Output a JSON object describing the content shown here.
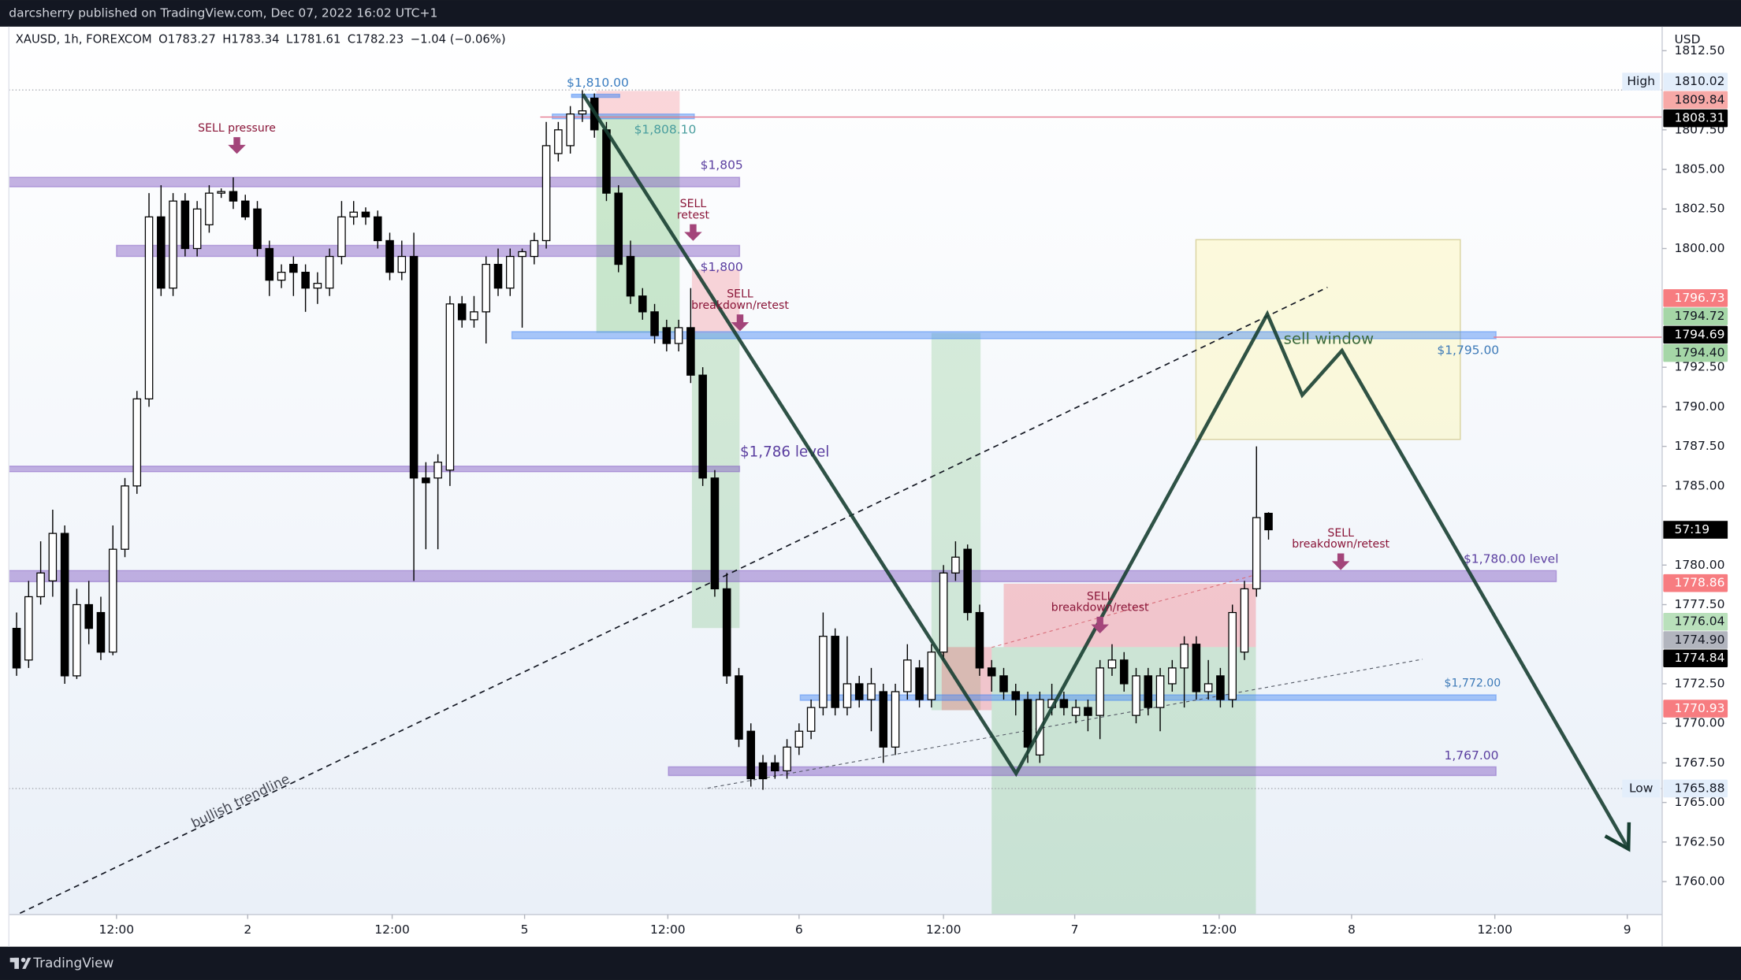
{
  "header": {
    "byline": "darcsherry published on TradingView.com, Dec 07, 2022 16:02 UTC+1",
    "symbol": "XAUSD, 1h, FOREXCOM",
    "ohlc": [
      "O1783.27",
      "H1783.34",
      "L1781.61",
      "C1782.23",
      "−1.04 (−0.06%)"
    ]
  },
  "footer": {
    "brand": "TradingView"
  },
  "chart_data": {
    "type": "candlestick",
    "currency": "USD",
    "countdown": "57:19",
    "up_color": "#ffffff",
    "down_color": "#000000",
    "wick_color": "#000000",
    "xlim": [
      3.36,
      140.7
    ],
    "ylim": [
      1757.92,
      1814.02
    ],
    "xticks": [
      {
        "value": 12.3,
        "label": "12:00"
      },
      {
        "value": 23.2,
        "label": "2"
      },
      {
        "value": 35.2,
        "label": "12:00"
      },
      {
        "value": 46.2,
        "label": "5"
      },
      {
        "value": 58.1,
        "label": "12:00"
      },
      {
        "value": 69.0,
        "label": "6"
      },
      {
        "value": 81.0,
        "label": "12:00"
      },
      {
        "value": 91.9,
        "label": "7"
      },
      {
        "value": 103.9,
        "label": "12:00"
      },
      {
        "value": 114.9,
        "label": "8"
      },
      {
        "value": 126.8,
        "label": "12:00"
      },
      {
        "value": 137.8,
        "label": "9"
      }
    ],
    "yticks": [
      {
        "value": 1812.5,
        "label": "1812.50"
      },
      {
        "value": 1807.5,
        "label": "1807.50"
      },
      {
        "value": 1805,
        "label": "1805.00"
      },
      {
        "value": 1802.5,
        "label": "1802.50"
      },
      {
        "value": 1800,
        "label": "1800.00"
      },
      {
        "value": 1792.5,
        "label": "1792.50"
      },
      {
        "value": 1790,
        "label": "1790.00"
      },
      {
        "value": 1787.5,
        "label": "1787.50"
      },
      {
        "value": 1785,
        "label": "1785.00"
      },
      {
        "value": 1780,
        "label": "1780.00"
      },
      {
        "value": 1777.5,
        "label": "1777.50"
      },
      {
        "value": 1772.5,
        "label": "1772.50"
      },
      {
        "value": 1770,
        "label": "1770.00"
      },
      {
        "value": 1767.5,
        "label": "1767.50"
      },
      {
        "value": 1765,
        "label": "1765.00"
      },
      {
        "value": 1762.5,
        "label": "1762.50"
      },
      {
        "value": 1760,
        "label": "1760.00"
      }
    ],
    "x": [
      4,
      5,
      6,
      7,
      8,
      9,
      10,
      11,
      12,
      13,
      14,
      15,
      16,
      17,
      18,
      19,
      20,
      21,
      22,
      23,
      24,
      25,
      26,
      27,
      28,
      29,
      30,
      31,
      32,
      33,
      34,
      35,
      36,
      37,
      38,
      39,
      40,
      41,
      42,
      43,
      44,
      45,
      46,
      47,
      48,
      49,
      50,
      51,
      52,
      53,
      54,
      55,
      56,
      57,
      58,
      59,
      60,
      61,
      62,
      63,
      64,
      65,
      66,
      67,
      68,
      69,
      70,
      71,
      72,
      73,
      74,
      75,
      76,
      77,
      78,
      79,
      80,
      81,
      82,
      83,
      84,
      85,
      86,
      87,
      88,
      89,
      90,
      91,
      92,
      93,
      94,
      95,
      96,
      97,
      98,
      99,
      100,
      101,
      102,
      103,
      104,
      105,
      106,
      107,
      108
    ],
    "open": [
      1776,
      1774,
      1778,
      1779,
      1782,
      1773,
      1777.5,
      1777,
      1774.5,
      1781,
      1785,
      1790.5,
      1802,
      1797.5,
      1803,
      1800,
      1801.5,
      1803.5,
      1803.6,
      1803,
      1802.5,
      1800,
      1798,
      1799,
      1798.5,
      1797.5,
      1797.5,
      1799.5,
      1802,
      1802.3,
      1802,
      1800.5,
      1798.5,
      1799.5,
      1785.5,
      1785.5,
      1786,
      1796.5,
      1795.5,
      1796,
      1799,
      1797.5,
      1799.5,
      1799.5,
      1800.5,
      1806,
      1806.5,
      1808.5,
      1809.5,
      1807.5,
      1803.5,
      1799.5,
      1797,
      1796,
      1795,
      1794,
      1795,
      1792,
      1785.5,
      1778.5,
      1773,
      1769.5,
      1767.5,
      1767.5,
      1767,
      1768.5,
      1769.5,
      1771,
      1775.5,
      1771,
      1772.5,
      1771.5,
      1772,
      1768.5,
      1772,
      1773.5,
      1771.5,
      1774.5,
      1779.5,
      1781,
      1777,
      1773.5,
      1773,
      1772,
      1771.5,
      1768,
      1771,
      1771.5,
      1770.5,
      1771,
      1770.5,
      1773.5,
      1774,
      1770.5,
      1773,
      1771,
      1772.5,
      1773.5,
      1775,
      1772,
      1773,
      1771.5,
      1774.5,
      1778.5,
      1783.27
    ],
    "high": [
      1777,
      1779,
      1781.5,
      1783.5,
      1782.5,
      1778.5,
      1779,
      1778,
      1782.5,
      1785.5,
      1791,
      1803.5,
      1804,
      1803.5,
      1803.5,
      1803,
      1804,
      1803.8,
      1804.5,
      1803.4,
      1803,
      1800.5,
      1799,
      1799.5,
      1799,
      1798.5,
      1800,
      1803,
      1803,
      1802.6,
      1802.4,
      1801,
      1800.5,
      1801,
      1786.5,
      1787,
      1797,
      1797,
      1797,
      1799.5,
      1800,
      1800,
      1800,
      1801,
      1808,
      1808,
      1809,
      1810,
      1809.8,
      1808,
      1804,
      1800.5,
      1797.5,
      1796.5,
      1795.5,
      1795.5,
      1797.5,
      1792.5,
      1786,
      1779.5,
      1773.5,
      1770,
      1768,
      1768,
      1769,
      1770,
      1771.5,
      1777,
      1776,
      1775.5,
      1773,
      1773.5,
      1772.5,
      1772.5,
      1775,
      1774,
      1775,
      1780,
      1781.5,
      1781.3,
      1777.5,
      1774,
      1773.5,
      1772.5,
      1772,
      1772,
      1772.5,
      1772,
      1771.5,
      1771.5,
      1774,
      1775,
      1774.5,
      1773.5,
      1773.5,
      1773.5,
      1774,
      1775.5,
      1775.5,
      1774,
      1773.5,
      1777.5,
      1779,
      1787.5,
      1783.34
    ],
    "low": [
      1773,
      1773.5,
      1777.5,
      1778,
      1772.5,
      1772.8,
      1775,
      1774,
      1774.3,
      1780.5,
      1784.5,
      1790,
      1797,
      1797,
      1799.5,
      1799.5,
      1801,
      1803.2,
      1802.5,
      1801.8,
      1799.5,
      1797,
      1797.5,
      1797,
      1796,
      1796.5,
      1797,
      1799,
      1801.5,
      1801.5,
      1800,
      1798,
      1798,
      1779,
      1781,
      1781,
      1785,
      1795,
      1795,
      1794,
      1797,
      1797,
      1795,
      1799,
      1800,
      1805.5,
      1806,
      1808,
      1807,
      1803,
      1798.5,
      1796.5,
      1795.5,
      1794,
      1793.5,
      1793.5,
      1791.5,
      1785,
      1778,
      1772.5,
      1768.5,
      1766,
      1765.8,
      1766.5,
      1766.5,
      1768,
      1769,
      1770.5,
      1770.5,
      1770.5,
      1771,
      1769.5,
      1767.5,
      1768,
      1771.5,
      1771,
      1771,
      1774,
      1779,
      1776.5,
      1773,
      1772,
      1771.5,
      1770.5,
      1767.5,
      1767.5,
      1770.5,
      1770.5,
      1770,
      1769.5,
      1769,
      1773,
      1772,
      1770,
      1770.5,
      1769.5,
      1772,
      1771,
      1771.5,
      1771.5,
      1771,
      1771,
      1774,
      1778,
      1781.61
    ],
    "close": [
      1773.5,
      1778,
      1779.5,
      1782,
      1773,
      1777.5,
      1776,
      1774.5,
      1781,
      1785,
      1790.5,
      1802,
      1797.5,
      1803,
      1800,
      1802.5,
      1803.5,
      1803.6,
      1803,
      1802,
      1800,
      1798,
      1798.5,
      1798.5,
      1797.5,
      1797.8,
      1799.5,
      1802,
      1802.3,
      1802,
      1800.5,
      1798.5,
      1799.5,
      1785.5,
      1785.2,
      1786.5,
      1796.5,
      1795.5,
      1796,
      1799,
      1797.5,
      1799.5,
      1799.8,
      1800.5,
      1806.5,
      1807.5,
      1808.5,
      1808.7,
      1807.5,
      1803.5,
      1799,
      1797,
      1796,
      1794.5,
      1794,
      1795,
      1792,
      1785.5,
      1778.5,
      1773,
      1769,
      1766.5,
      1766.5,
      1767,
      1768.5,
      1769.5,
      1771,
      1775.5,
      1771,
      1772.5,
      1771.5,
      1772.5,
      1768.5,
      1772,
      1774,
      1771.5,
      1774.5,
      1779.5,
      1780.5,
      1777,
      1773.5,
      1773,
      1772,
      1771.5,
      1768.5,
      1771.5,
      1771.5,
      1771,
      1771,
      1770.5,
      1773.5,
      1774,
      1772.5,
      1773,
      1771,
      1773,
      1773.5,
      1775,
      1772,
      1772.5,
      1771.5,
      1777,
      1778.5,
      1783,
      1782.23
    ],
    "boxes": [
      {
        "x1": 101.97,
        "x2": 123.93,
        "y1": 1800.56,
        "y2": 1787.94,
        "color": "rgba(255,245,157,0.35)",
        "border": "#d9d3a0"
      },
      {
        "x1": 52.16,
        "x2": 59.08,
        "y1": 1808.42,
        "y2": 1794.67,
        "color": "rgba(76,175,80,0.28)"
      },
      {
        "x1": 52.16,
        "x2": 59.08,
        "y1": 1809.96,
        "y2": 1808.42,
        "color": "rgba(242,54,69,0.2)"
      },
      {
        "x1": 60.1,
        "x2": 64.06,
        "y1": 1794.67,
        "y2": 1776.02,
        "color": "rgba(76,175,80,0.22)"
      },
      {
        "x1": 60.1,
        "x2": 64.06,
        "y1": 1798.67,
        "y2": 1794.67,
        "color": "rgba(242,54,69,0.2)"
      },
      {
        "x1": 80.0,
        "x2": 84.08,
        "y1": 1794.67,
        "y2": 1770.83,
        "color": "rgba(76,175,80,0.2)"
      },
      {
        "x1": 80.85,
        "x2": 85.0,
        "y1": 1774.82,
        "y2": 1770.83,
        "color": "rgba(242,54,69,0.25)"
      },
      {
        "x1": 86.0,
        "x2": 106.95,
        "y1": 1778.82,
        "y2": 1774.82,
        "color": "rgba(242,54,69,0.25)"
      },
      {
        "x1": 85.0,
        "x2": 106.95,
        "y1": 1774.82,
        "y2": 1757.92,
        "color": "rgba(76,175,80,0.22)"
      }
    ],
    "zones": [
      {
        "label": "$1,805",
        "x1": 3.36,
        "x2": 64.06,
        "y1": 1804.5,
        "y2": 1803.9,
        "color": "rgba(126,87,194,0.45)",
        "text_color": "#5b3fa0",
        "label_x": 60.8,
        "label_y": 1805.26,
        "font": 11
      },
      {
        "label": "$1,800",
        "x1": 12.3,
        "x2": 64.06,
        "y1": 1800.2,
        "y2": 1799.5,
        "color": "rgba(126,87,194,0.45)",
        "text_color": "#5b3fa0",
        "label_x": 60.8,
        "label_y": 1798.81,
        "font": 11
      },
      {
        "label": "$1,786 level",
        "x1": 3.36,
        "x2": 64.06,
        "y1": 1786.25,
        "y2": 1785.9,
        "color": "rgba(126,87,194,0.45)",
        "text_color": "#5b3fa0",
        "label_x": 64.1,
        "label_y": 1787.1,
        "font": 13
      },
      {
        "label": "$1,780.00 level",
        "x1": 3.36,
        "x2": 131.9,
        "y1": 1779.65,
        "y2": 1778.95,
        "color": "rgba(126,87,194,0.45)",
        "text_color": "#5b3fa0",
        "label_x": 124.2,
        "label_y": 1780.37,
        "font": 11
      },
      {
        "label": "1,767.00",
        "x1": 58.15,
        "x2": 126.9,
        "y1": 1767.25,
        "y2": 1766.7,
        "color": "rgba(126,87,194,0.45)",
        "text_color": "#5b3fa0",
        "label_x": 122.6,
        "label_y": 1767.95,
        "font": 11
      },
      {
        "label": "$1,795.00",
        "x1": 45.15,
        "x2": 126.9,
        "y1": 1794.75,
        "y2": 1794.3,
        "color": "rgba(66,133,244,0.45)",
        "text_color": "#3d7ab8",
        "label_x": 122.0,
        "label_y": 1793.55,
        "font": 11
      },
      {
        "label": "$1,772.00",
        "x1": 69.1,
        "x2": 126.9,
        "y1": 1771.8,
        "y2": 1771.45,
        "color": "rgba(66,133,244,0.45)",
        "text_color": "#3d7ab8",
        "label_x": 122.6,
        "label_y": 1772.51,
        "font": 10
      },
      {
        "label": "$1,808.10",
        "x1": 48.5,
        "x2": 60.3,
        "y1": 1808.5,
        "y2": 1808.2,
        "color": "rgba(66,133,244,0.45)",
        "text_color": "#4a9e9e",
        "label_x": 55.3,
        "label_y": 1807.5,
        "font": 11
      },
      {
        "label": "$1,810.00",
        "x1": 50.1,
        "x2": 54.1,
        "y1": 1809.75,
        "y2": 1809.55,
        "color": "rgba(66,133,244,0.5)",
        "text_color": "#3b7dc0",
        "label_x": 49.7,
        "label_y": 1810.45,
        "font": 11
      }
    ],
    "lines": [
      {
        "x": [
          4.28,
          112.9
        ],
        "y": [
          1758.0,
          1797.55
        ],
        "color": "#131722",
        "width": 1.2,
        "dash": "5,4",
        "label": "bullish trendline",
        "label_x": 18.6,
        "label_y": 1763.6
      },
      {
        "x": [
          61.4,
          120.8
        ],
        "y": [
          1765.9,
          1774.05
        ],
        "color": "#555a66",
        "width": 0.8,
        "dash": "3,3"
      },
      {
        "x": [
          85.0,
          107.0
        ],
        "y": [
          1774.8,
          1779.4
        ],
        "color": "#d9707b",
        "width": 0.8,
        "dash": "3,3"
      },
      {
        "x": [
          3.36,
          140.7
        ],
        "y": [
          1810.02,
          1810.02
        ],
        "color": "#9598a1",
        "width": 0.8,
        "dash": "1,2"
      },
      {
        "x": [
          3.36,
          140.7
        ],
        "y": [
          1765.88,
          1765.88
        ],
        "color": "#9598a1",
        "width": 0.8,
        "dash": "1,2"
      },
      {
        "x": [
          47.5,
          140.7
        ],
        "y": [
          1808.31,
          1808.31
        ],
        "color": "#e57a8f",
        "width": 1
      },
      {
        "x": [
          126.7,
          140.7
        ],
        "y": [
          1794.4,
          1794.4
        ],
        "color": "#e57a8f",
        "width": 1
      }
    ],
    "path": {
      "x": [
        51.05,
        87.03,
        107.9,
        110.8,
        114.1,
        137.9
      ],
      "y": [
        1809.75,
        1766.83,
        1795.86,
        1790.74,
        1793.55,
        1762.06
      ],
      "color": "#183f32",
      "width": 3.2,
      "arrow": true
    },
    "annotations": [
      {
        "lines": [
          "SELL pressure"
        ],
        "x": 22.3,
        "y": 1807.6
      },
      {
        "lines": [
          "SELL",
          "retest"
        ],
        "x": 60.2,
        "y": 1802.8
      },
      {
        "lines": [
          "SELL",
          "breakdown/retest"
        ],
        "x": 64.1,
        "y": 1797.1
      },
      {
        "lines": [
          "SELL",
          "breakdown/retest"
        ],
        "x": 94.0,
        "y": 1778.0
      },
      {
        "lines": [
          "SELL",
          "breakdown/retest"
        ],
        "x": 114.0,
        "y": 1782.0
      }
    ],
    "annotation_color": "#8a1538",
    "arrow_color": "#a3457a",
    "notes": [
      {
        "text": "sell window",
        "x": 113.0,
        "y": 1794.25,
        "color": "#3d6b3d"
      }
    ],
    "price_labels": [
      {
        "value": 1810.02,
        "label": "1810.02",
        "bg": "#e3eefb",
        "fg": "#131722",
        "tag": "High"
      },
      {
        "value": 1809.84,
        "label": "1809.84",
        "bg": "#f7a9a7",
        "fg": "#131722"
      },
      {
        "value": 1808.31,
        "label": "1808.31",
        "bg": "#000000",
        "fg": "#ffffff"
      },
      {
        "value": 1796.73,
        "label": "1796.73",
        "bg": "#f77c80",
        "fg": "#ffffff"
      },
      {
        "value": 1794.72,
        "label": "1794.72",
        "bg": "#a5d6a7",
        "fg": "#131722"
      },
      {
        "value": 1794.69,
        "label": "1794.69",
        "bg": "#000000",
        "fg": "#ffffff"
      },
      {
        "value": 1794.4,
        "label": "1794.40",
        "bg": "#a5d6a7",
        "fg": "#131722"
      },
      {
        "value": 1778.86,
        "label": "1778.86",
        "bg": "#f77c80",
        "fg": "#ffffff"
      },
      {
        "value": 1776.04,
        "label": "1776.04",
        "bg": "#b9e0bb",
        "fg": "#131722"
      },
      {
        "value": 1774.9,
        "label": "1774.90",
        "bg": "#b2b5be",
        "fg": "#131722"
      },
      {
        "value": 1774.84,
        "label": "1774.84",
        "bg": "#000000",
        "fg": "#ffffff"
      },
      {
        "value": 1770.93,
        "label": "1770.93",
        "bg": "#f77c80",
        "fg": "#ffffff"
      },
      {
        "value": 1765.88,
        "label": "1765.88",
        "bg": "#e3eefb",
        "fg": "#131722",
        "tag": "Low"
      }
    ]
  }
}
